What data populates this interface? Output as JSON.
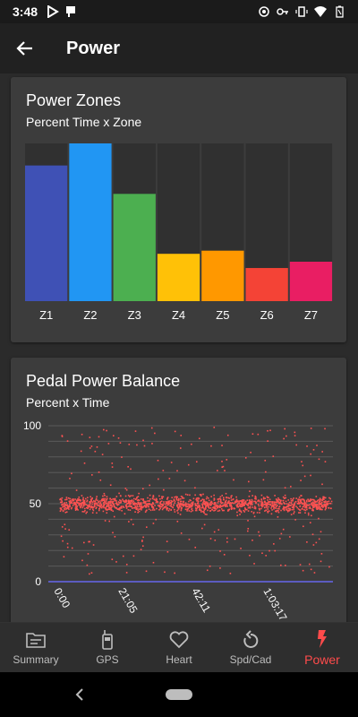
{
  "status_bar": {
    "time": "3:48"
  },
  "app_bar": {
    "title": "Power"
  },
  "zones_card": {
    "title": "Power Zones",
    "subtitle": "Percent Time x Zone"
  },
  "pedal_card": {
    "title": "Pedal Power Balance",
    "subtitle": "Percent x Time"
  },
  "chart_data": [
    {
      "type": "bar",
      "title": "Power Zones",
      "subtitle": "Percent Time x Zone",
      "categories": [
        "Z1",
        "Z2",
        "Z3",
        "Z4",
        "Z5",
        "Z6",
        "Z7"
      ],
      "values": [
        86,
        100,
        68,
        30,
        32,
        21,
        25
      ],
      "ylim": [
        0,
        100
      ],
      "colors": [
        "#3f51b5",
        "#2196f3",
        "#4caf50",
        "#ffc107",
        "#ff9800",
        "#f44336",
        "#e91e63"
      ],
      "background_color": "#303030"
    },
    {
      "type": "scatter",
      "title": "Pedal Power Balance",
      "subtitle": "Percent x Time",
      "y_ticks": [
        "100",
        "50",
        "0"
      ],
      "ylim": [
        0,
        100
      ],
      "x_ticks": [
        "0:00",
        "21:05",
        "42:11",
        "1:03:17"
      ],
      "series": [
        {
          "center": 50,
          "spread": 2.5,
          "outlier_range": [
            5,
            100
          ],
          "color": "#ff5252"
        }
      ],
      "grid": true
    }
  ],
  "bottom_nav": {
    "items": [
      {
        "label": "Summary",
        "icon": "summary-icon"
      },
      {
        "label": "GPS",
        "icon": "gps-icon"
      },
      {
        "label": "Heart",
        "icon": "heart-icon"
      },
      {
        "label": "Spd/Cad",
        "icon": "speed-cadence-icon"
      },
      {
        "label": "Power",
        "icon": "power-icon",
        "active": true
      }
    ],
    "active_color": "#ff4b4b"
  }
}
